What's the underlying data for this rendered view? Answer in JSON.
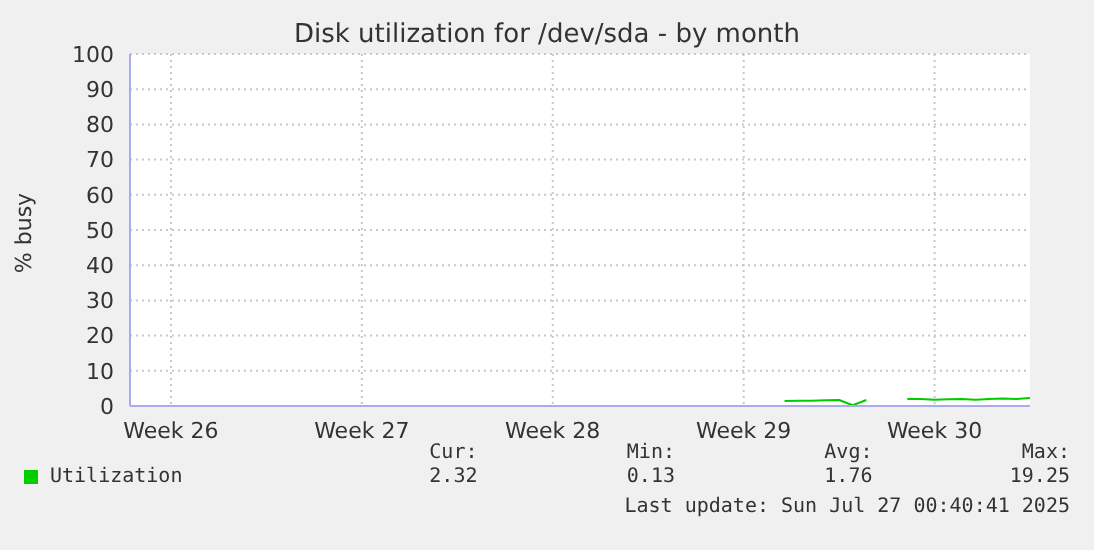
{
  "chart_data": {
    "type": "line",
    "title": "Disk utilization for /dev/sda - by month",
    "ylabel": "% busy",
    "categories": [
      null,
      null,
      null,
      "Week 26",
      null,
      null,
      null,
      null,
      null,
      null,
      null,
      null,
      null,
      null,
      null,
      null,
      null,
      "Week 27",
      null,
      null,
      null,
      null,
      null,
      null,
      null,
      null,
      null,
      null,
      null,
      null,
      null,
      "Week 28",
      null,
      null,
      null,
      null,
      null,
      null,
      null,
      null,
      null,
      null,
      null,
      null,
      null,
      "Week 29",
      null,
      null,
      null,
      null,
      null,
      null,
      null,
      null,
      null,
      null,
      null,
      null,
      null,
      "Week 30",
      null,
      null,
      null,
      null,
      null,
      null,
      null
    ],
    "series": [
      {
        "name": "Utilization",
        "color": "#00cc00",
        "values": [
          null,
          null,
          null,
          null,
          null,
          null,
          null,
          null,
          null,
          null,
          null,
          null,
          null,
          null,
          null,
          null,
          null,
          null,
          null,
          null,
          null,
          null,
          null,
          null,
          null,
          null,
          null,
          null,
          null,
          null,
          null,
          null,
          null,
          null,
          null,
          null,
          null,
          null,
          null,
          null,
          null,
          null,
          null,
          null,
          null,
          null,
          null,
          null,
          1.4,
          1.5,
          1.5,
          1.6,
          1.7,
          0.2,
          1.7,
          null,
          null,
          2.0,
          2.0,
          1.8,
          1.9,
          2.0,
          1.8,
          2.0,
          2.1,
          2.0,
          2.3
        ]
      }
    ],
    "ylim": [
      0,
      100
    ],
    "yticks": [
      0,
      10,
      20,
      30,
      40,
      50,
      60,
      70,
      80,
      90,
      100
    ],
    "grid": true,
    "legend": "bottom",
    "marker": "none",
    "line_style": "solid",
    "annotations": [
      "Cur:",
      "Min:",
      "Avg:",
      "Max:",
      "2.32",
      "0.13",
      "1.76",
      "19.25",
      "Last update: Sun Jul 27 00:40:41 2025"
    ]
  }
}
